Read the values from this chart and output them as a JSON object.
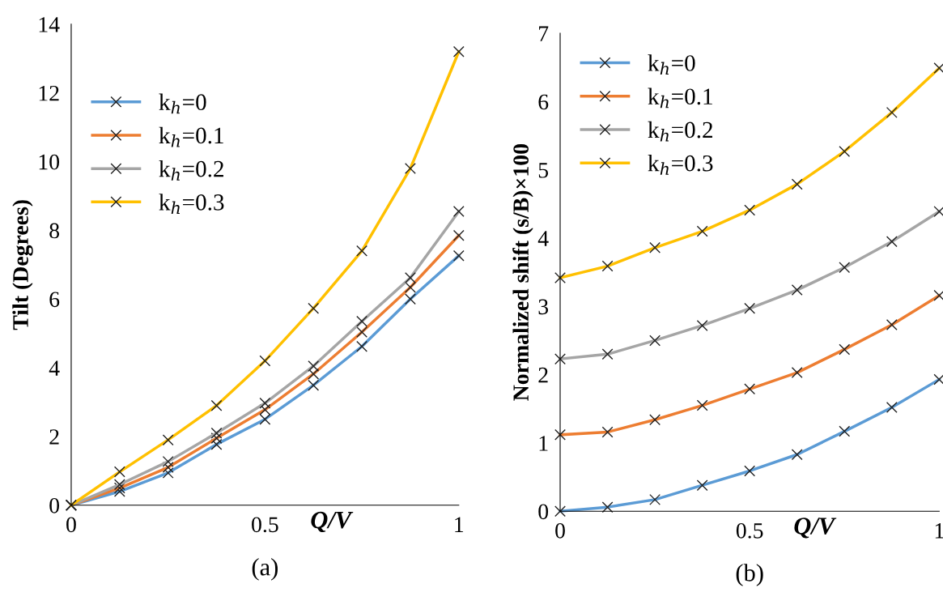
{
  "chart_data": [
    {
      "type": "line",
      "ylabel": "Tilt (Degrees)",
      "xlabel": "Q/V",
      "annotations": [
        "(a)"
      ],
      "x": [
        0,
        0.125,
        0.25,
        0.375,
        0.5,
        0.625,
        0.75,
        0.875,
        1
      ],
      "xlim": [
        0,
        1
      ],
      "xticks": [
        0,
        0.5,
        1
      ],
      "ylim": [
        0,
        14
      ],
      "yticks": [
        0,
        2,
        4,
        6,
        8,
        10,
        12,
        14
      ],
      "marker": "cross",
      "legend": "top left",
      "grid": false,
      "series": [
        {
          "name": "k$_{h}$=0",
          "color": "#5b9bd5",
          "values": [
            0,
            0.4,
            0.94,
            1.77,
            2.5,
            3.49,
            4.62,
            6.0,
            7.26
          ]
        },
        {
          "name": "k$_{h}$=0.1",
          "color": "#ed7d31",
          "values": [
            0,
            0.5,
            1.1,
            1.95,
            2.78,
            3.82,
            5.04,
            6.34,
            7.85
          ]
        },
        {
          "name": "k$_{h}$=0.2",
          "color": "#a5a5a5",
          "values": [
            0,
            0.6,
            1.27,
            2.1,
            2.97,
            4.05,
            5.35,
            6.62,
            8.55
          ]
        },
        {
          "name": "k$_{h}$=0.3",
          "color": "#ffc000",
          "values": [
            0,
            0.97,
            1.9,
            2.9,
            4.2,
            5.73,
            7.4,
            9.8,
            13.2
          ]
        }
      ]
    },
    {
      "type": "line",
      "ylabel": "Normalized shift (s/B)×100",
      "xlabel": "Q/V",
      "annotations": [
        "(b)"
      ],
      "x": [
        0,
        0.125,
        0.25,
        0.375,
        0.5,
        0.625,
        0.75,
        0.875,
        1
      ],
      "xlim": [
        0,
        1
      ],
      "xticks": [
        0,
        0.5,
        1
      ],
      "ylim": [
        0,
        7
      ],
      "yticks": [
        0,
        1,
        2,
        3,
        4,
        5,
        6,
        7
      ],
      "marker": "cross",
      "legend": "top left",
      "grid": false,
      "series": [
        {
          "name": "k$_{h}$=0",
          "color": "#5b9bd5",
          "values": [
            0,
            0.06,
            0.17,
            0.38,
            0.59,
            0.83,
            1.17,
            1.52,
            1.93
          ]
        },
        {
          "name": "k$_{h}$=0.1",
          "color": "#ed7d31",
          "values": [
            1.12,
            1.16,
            1.34,
            1.55,
            1.79,
            2.03,
            2.37,
            2.73,
            3.16
          ]
        },
        {
          "name": "k$_{h}$=0.2",
          "color": "#a5a5a5",
          "values": [
            2.23,
            2.3,
            2.5,
            2.72,
            2.97,
            3.24,
            3.57,
            3.95,
            4.39
          ]
        },
        {
          "name": "k$_{h}$=0.3",
          "color": "#ffc000",
          "values": [
            3.42,
            3.59,
            3.86,
            4.1,
            4.41,
            4.79,
            5.27,
            5.84,
            6.49
          ]
        }
      ]
    }
  ]
}
